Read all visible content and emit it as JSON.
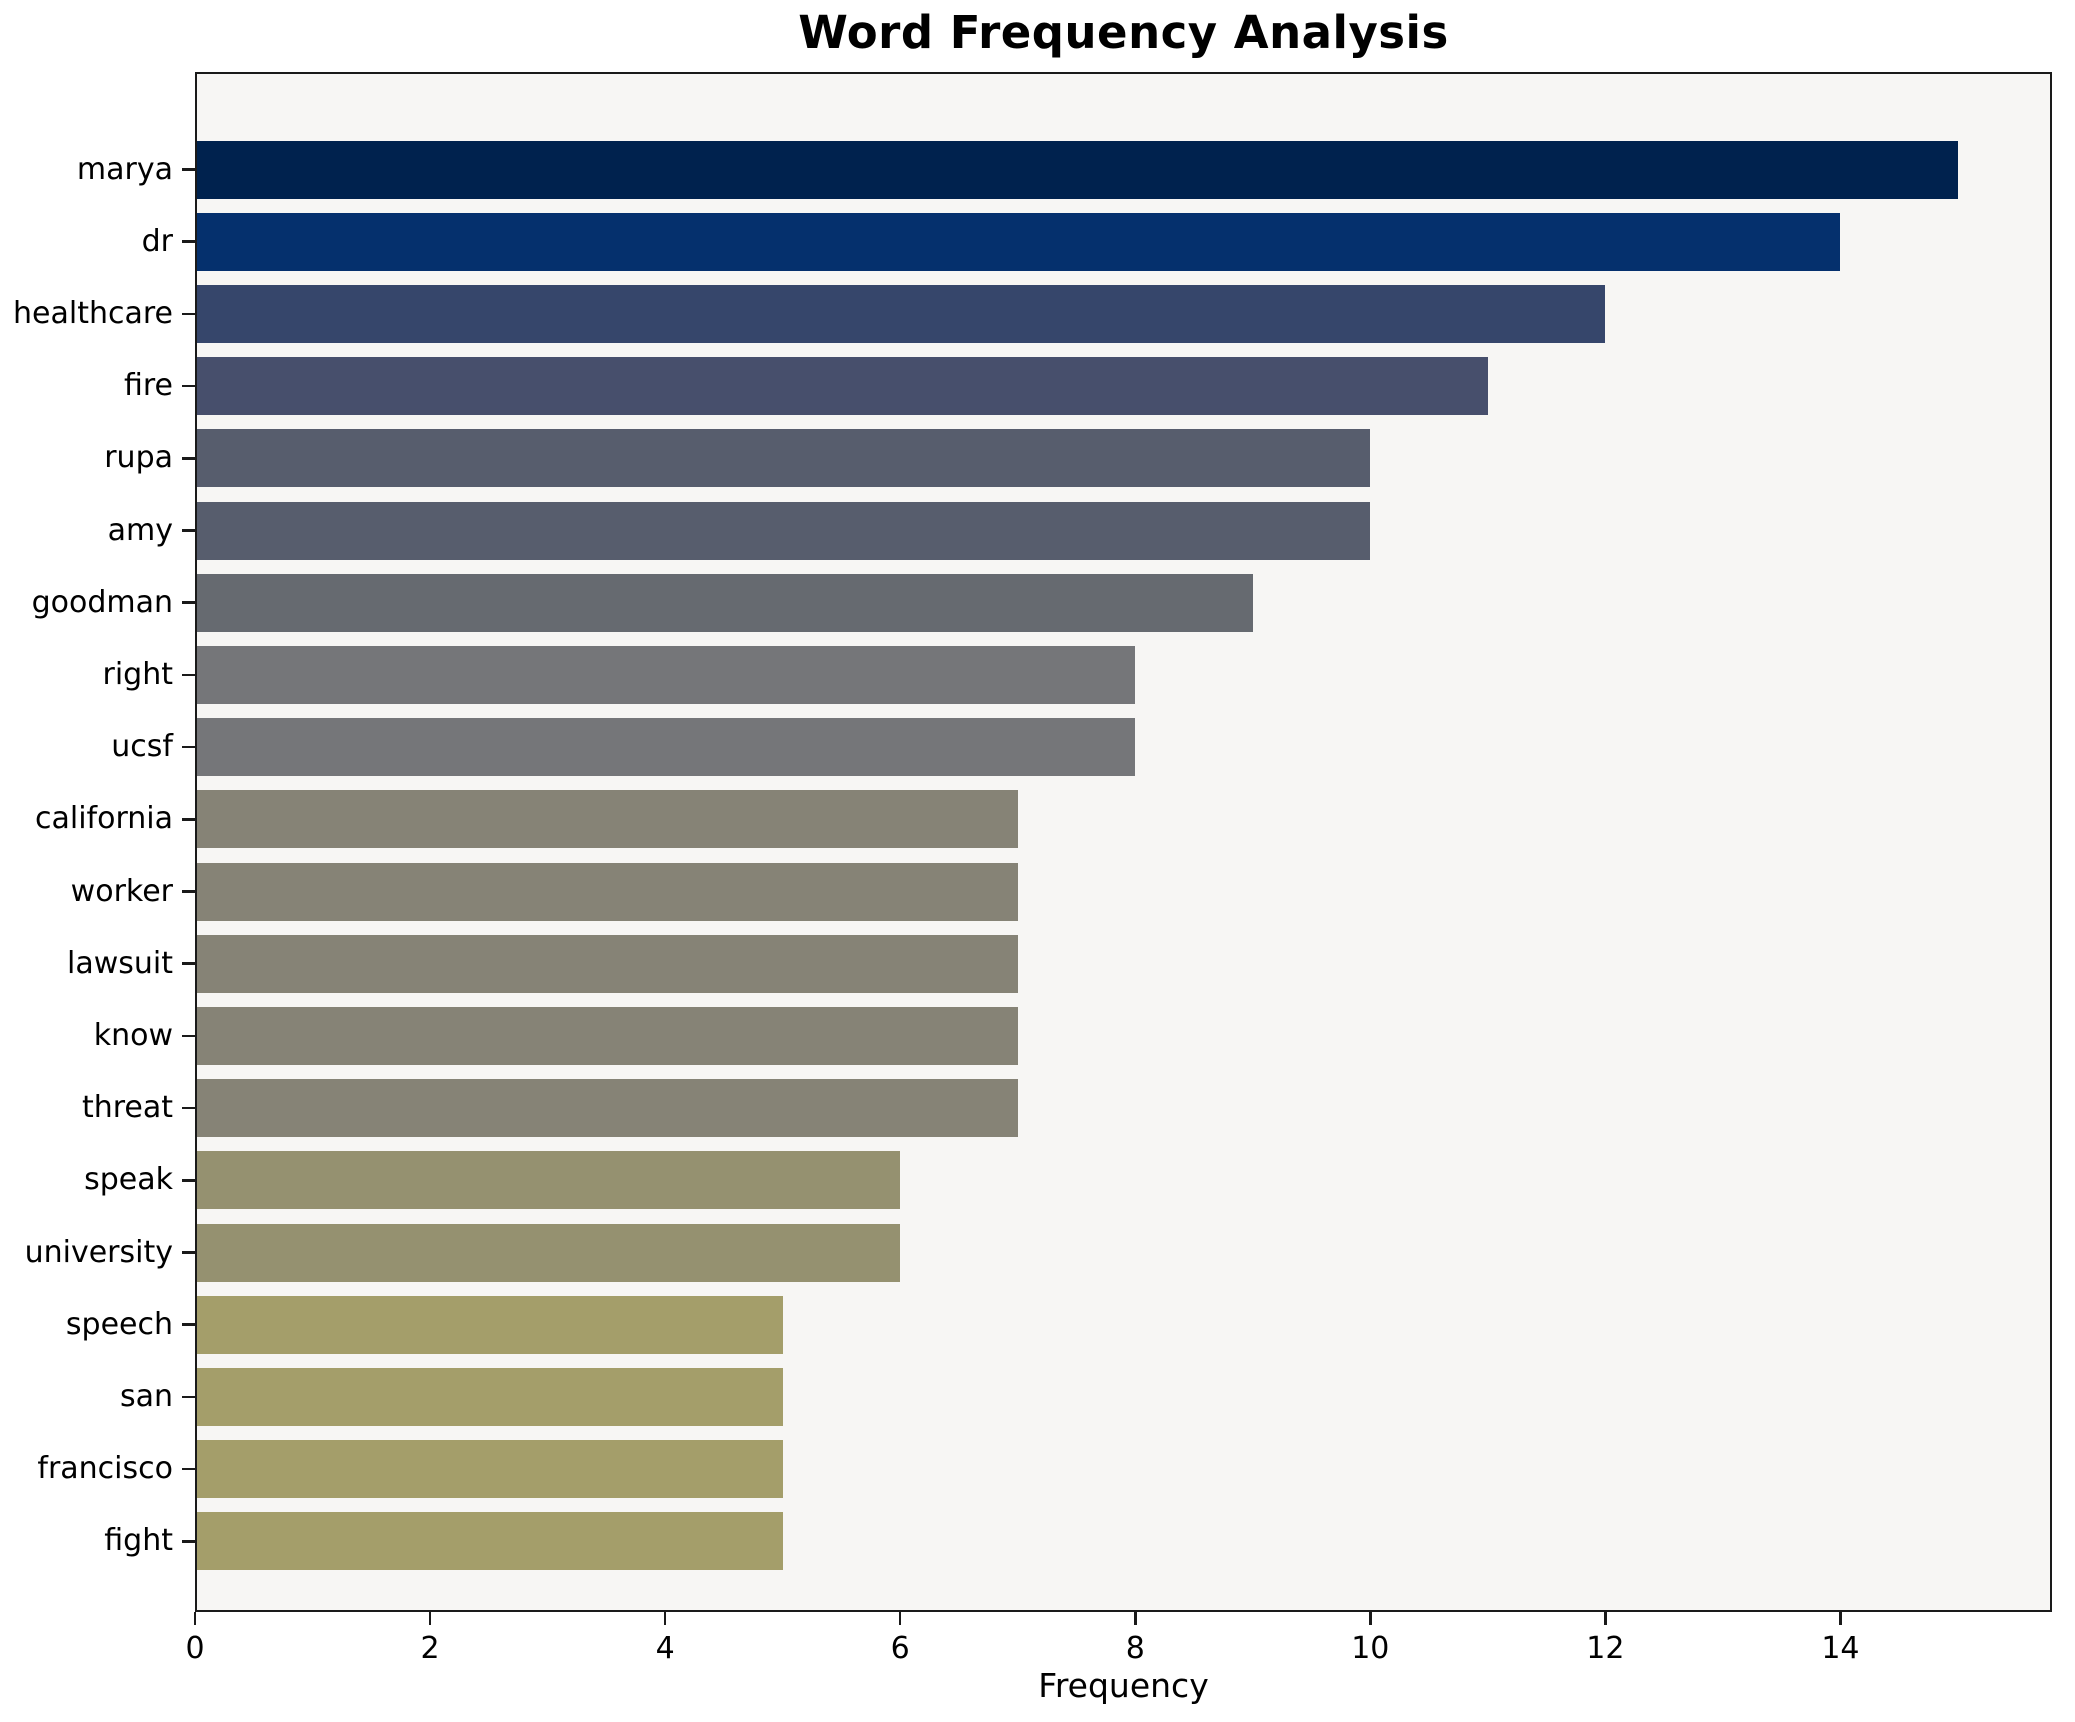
{
  "chart_data": {
    "type": "bar",
    "orientation": "horizontal",
    "title": "Word Frequency Analysis",
    "xlabel": "Frequency",
    "ylabel": "",
    "categories": [
      "marya",
      "dr",
      "healthcare",
      "fire",
      "rupa",
      "amy",
      "goodman",
      "right",
      "ucsf",
      "california",
      "worker",
      "lawsuit",
      "know",
      "threat",
      "speak",
      "university",
      "speech",
      "san",
      "francisco",
      "fight"
    ],
    "values": [
      15,
      14,
      12,
      11,
      10,
      10,
      9,
      8,
      8,
      7,
      7,
      7,
      7,
      7,
      6,
      6,
      5,
      5,
      5,
      5
    ],
    "bar_colors": [
      "#00224e",
      "#05306d",
      "#36466b",
      "#474f6c",
      "#575d6d",
      "#575d6d",
      "#666a70",
      "#757679",
      "#757679",
      "#868376",
      "#868376",
      "#868376",
      "#868376",
      "#868376",
      "#959170",
      "#959170",
      "#a49e6a",
      "#a49e6a",
      "#a49e6a",
      "#a49e6a"
    ],
    "xlim": [
      0,
      15.8
    ],
    "xticks": [
      0,
      2,
      4,
      6,
      8,
      10,
      12,
      14
    ],
    "grid": false,
    "legend": null,
    "plot_background": "#f7f6f4",
    "frame_color": "#1a1a1a",
    "text_color": "#000000"
  }
}
